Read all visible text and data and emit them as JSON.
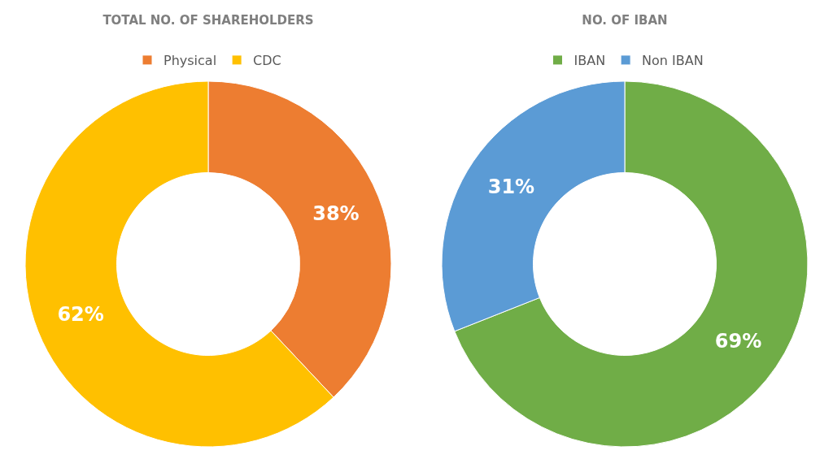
{
  "chart_data": [
    {
      "type": "donut",
      "title": "TOTAL NO. OF SHAREHOLDERS",
      "categories": [
        "Physical",
        "CDC"
      ],
      "values": [
        38,
        62
      ],
      "colors": [
        "#ed7d31",
        "#ffc000"
      ],
      "value_labels": [
        "38%",
        "62%"
      ],
      "legend": "top"
    },
    {
      "type": "donut",
      "title": "NO. OF IBAN",
      "categories": [
        "IBAN",
        "Non IBAN"
      ],
      "values": [
        69,
        31
      ],
      "colors": [
        "#70ad47",
        "#5b9bd5"
      ],
      "value_labels": [
        "69%",
        "31%"
      ],
      "legend": "top"
    }
  ]
}
